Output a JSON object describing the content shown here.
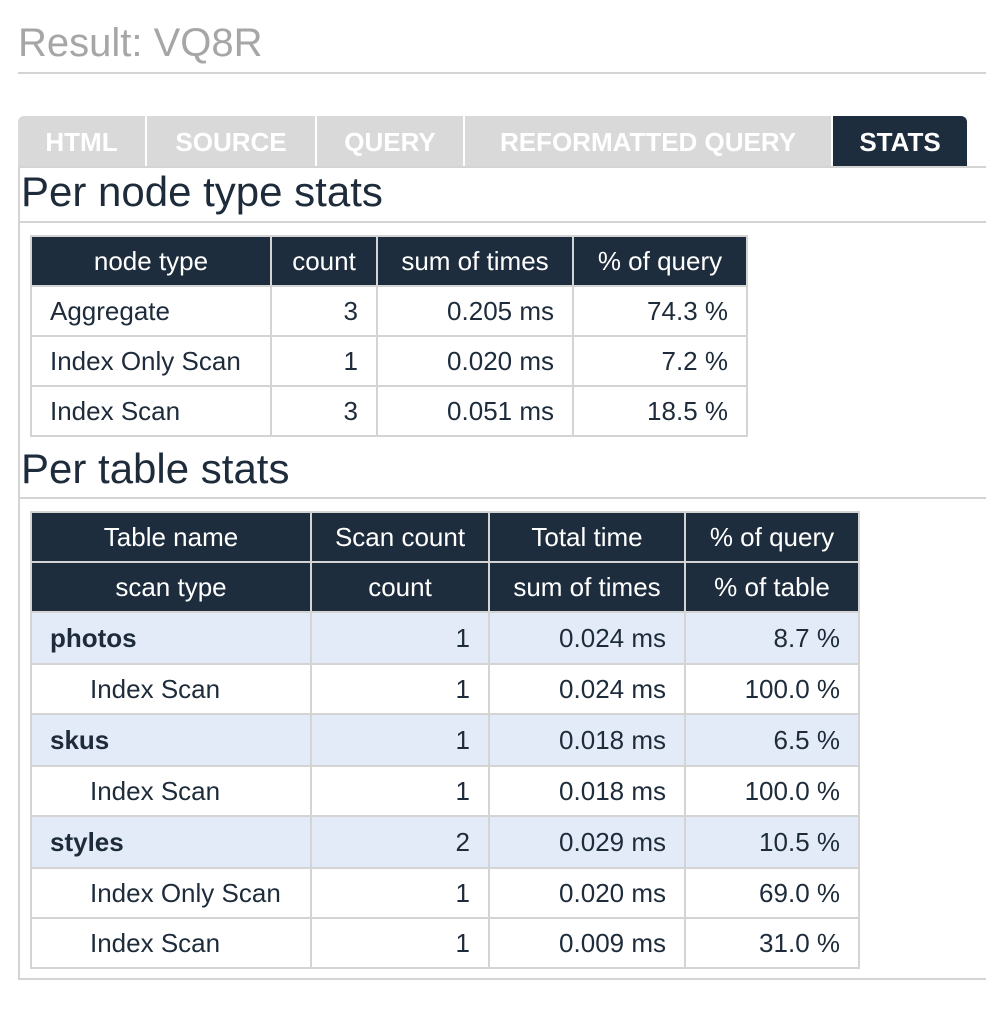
{
  "page_title": "Result: VQ8R",
  "tabs": [
    {
      "label": "HTML"
    },
    {
      "label": "SOURCE"
    },
    {
      "label": "QUERY"
    },
    {
      "label": "REFORMATTED QUERY"
    },
    {
      "label": "STATS"
    }
  ],
  "active_tab": "STATS",
  "node_stats": {
    "heading": "Per node type stats",
    "columns": [
      "node type",
      "count",
      "sum of times",
      "% of query"
    ],
    "rows": [
      {
        "node_type": "Aggregate",
        "count": "3",
        "sum_of_times": "0.205 ms",
        "pct_query": "74.3 %"
      },
      {
        "node_type": "Index Only Scan",
        "count": "1",
        "sum_of_times": "0.020 ms",
        "pct_query": "7.2 %"
      },
      {
        "node_type": "Index Scan",
        "count": "3",
        "sum_of_times": "0.051 ms",
        "pct_query": "18.5 %"
      }
    ]
  },
  "table_stats": {
    "heading": "Per table stats",
    "columns_top": [
      "Table name",
      "Scan count",
      "Total time",
      "% of query"
    ],
    "columns_sub": [
      "scan type",
      "count",
      "sum of times",
      "% of table"
    ],
    "tables": [
      {
        "name": "photos",
        "scan_count": "1",
        "total_time": "0.024 ms",
        "pct_query": "8.7 %",
        "scans": [
          {
            "type": "Index Scan",
            "count": "1",
            "sum_of_times": "0.024 ms",
            "pct_table": "100.0 %"
          }
        ]
      },
      {
        "name": "skus",
        "scan_count": "1",
        "total_time": "0.018 ms",
        "pct_query": "6.5 %",
        "scans": [
          {
            "type": "Index Scan",
            "count": "1",
            "sum_of_times": "0.018 ms",
            "pct_table": "100.0 %"
          }
        ]
      },
      {
        "name": "styles",
        "scan_count": "2",
        "total_time": "0.029 ms",
        "pct_query": "10.5 %",
        "scans": [
          {
            "type": "Index Only Scan",
            "count": "1",
            "sum_of_times": "0.020 ms",
            "pct_table": "69.0 %"
          },
          {
            "type": "Index Scan",
            "count": "1",
            "sum_of_times": "0.009 ms",
            "pct_table": "31.0 %"
          }
        ]
      }
    ]
  }
}
